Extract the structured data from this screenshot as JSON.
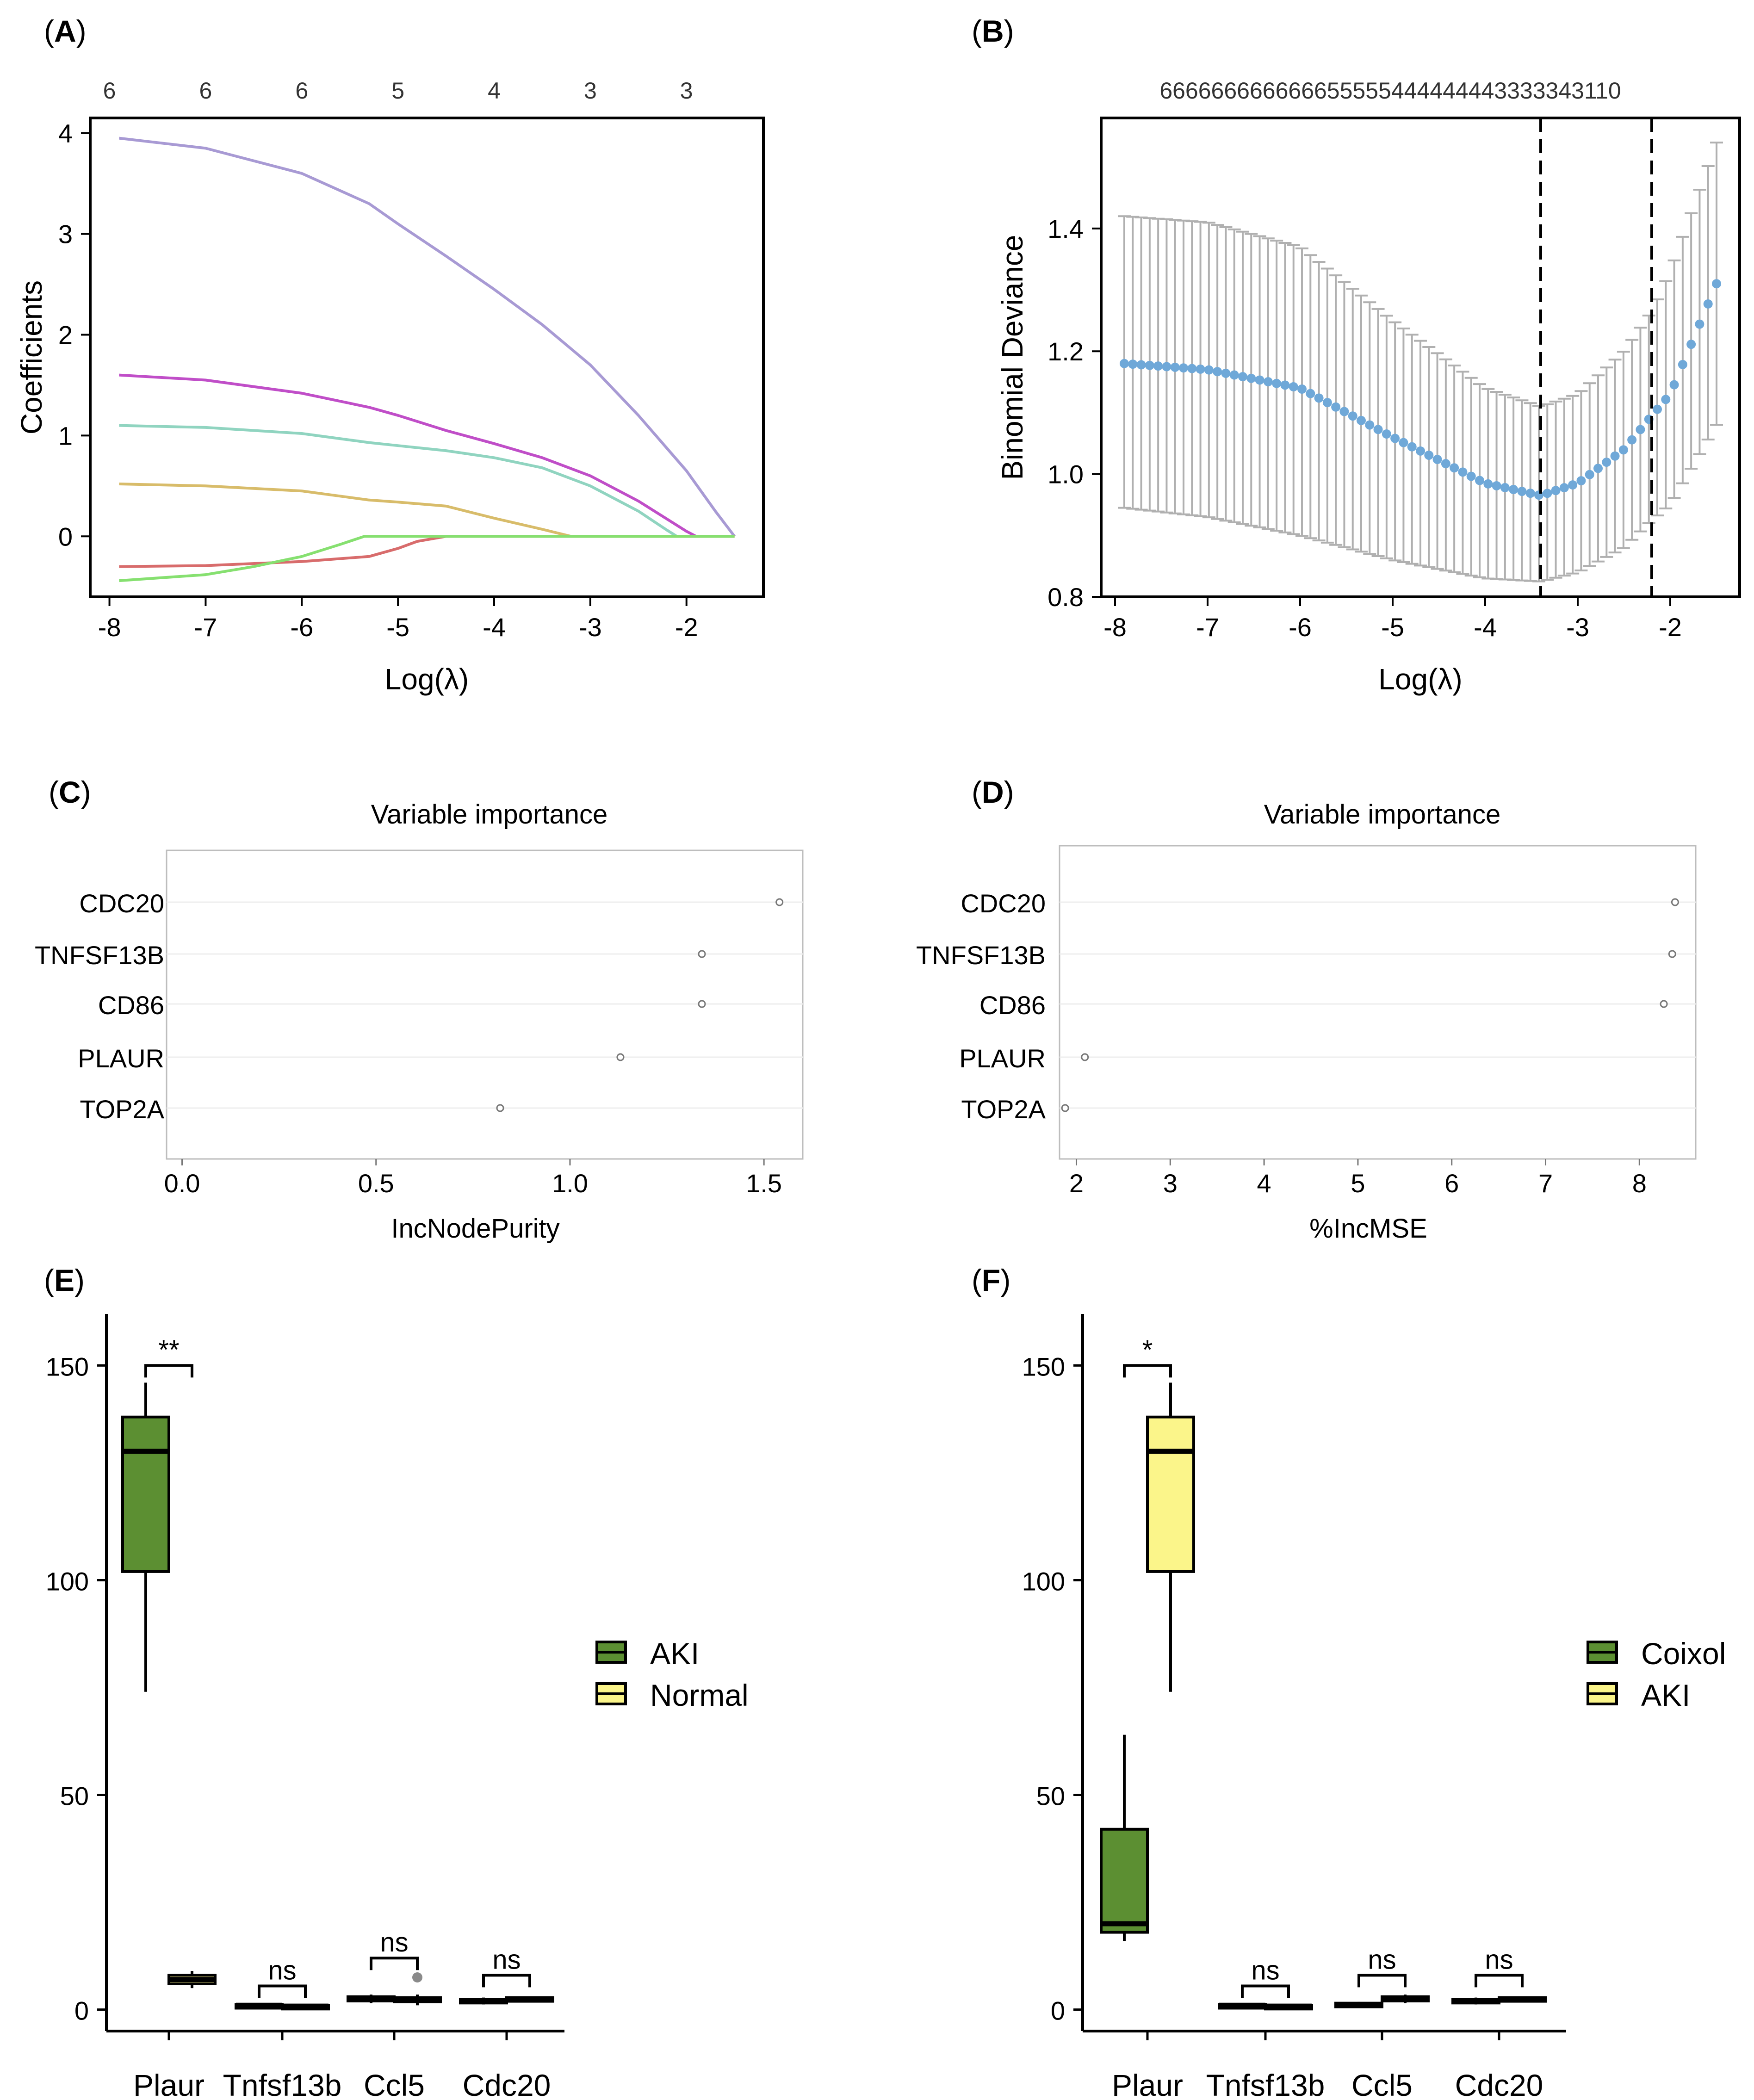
{
  "panels": [
    {
      "id": "A",
      "label": "A",
      "chart_data": {
        "type": "line",
        "title": "",
        "xlabel": "Log(λ)",
        "ylabel": "Coefficients",
        "xlim": [
          -8.2,
          -1.2
        ],
        "ylim": [
          -0.6,
          4.15
        ],
        "xticks": [
          -8,
          -7,
          -6,
          -5,
          -4,
          -3,
          -2
        ],
        "yticks": [
          0,
          1,
          2,
          3,
          4
        ],
        "top_axis": {
          "positions": [
            -8,
            -7,
            -6,
            -5,
            -4,
            -3,
            -2
          ],
          "labels": [
            "6",
            "6",
            "6",
            "5",
            "4",
            "3",
            "3"
          ]
        },
        "series": [
          {
            "name": "purple",
            "color": "#a89ad4",
            "x": [
              -7.9,
              -7.0,
              -6.0,
              -5.3,
              -5.0,
              -4.5,
              -4.0,
              -3.5,
              -3.0,
              -2.5,
              -2.0,
              -1.7,
              -1.5
            ],
            "y": [
              3.95,
              3.85,
              3.6,
              3.3,
              3.1,
              2.78,
              2.45,
              2.1,
              1.7,
              1.2,
              0.65,
              0.25,
              0.0
            ]
          },
          {
            "name": "magenta",
            "color": "#c04ec8",
            "x": [
              -7.9,
              -7.0,
              -6.0,
              -5.3,
              -5.0,
              -4.5,
              -4.0,
              -3.5,
              -3.0,
              -2.5,
              -2.0,
              -1.9
            ],
            "y": [
              1.6,
              1.55,
              1.42,
              1.28,
              1.2,
              1.05,
              0.92,
              0.78,
              0.6,
              0.35,
              0.05,
              0.0
            ]
          },
          {
            "name": "teal",
            "color": "#90d4c0",
            "x": [
              -7.9,
              -7.0,
              -6.0,
              -5.3,
              -5.0,
              -4.5,
              -4.0,
              -3.5,
              -3.0,
              -2.5,
              -2.2,
              -2.1
            ],
            "y": [
              1.1,
              1.08,
              1.02,
              0.93,
              0.9,
              0.85,
              0.78,
              0.68,
              0.5,
              0.25,
              0.06,
              0.0
            ]
          },
          {
            "name": "gold",
            "color": "#d8bc6a",
            "x": [
              -7.9,
              -7.0,
              -6.0,
              -5.3,
              -5.0,
              -4.5,
              -4.0,
              -3.5,
              -3.2,
              -3.0,
              -1.5
            ],
            "y": [
              0.52,
              0.5,
              0.45,
              0.36,
              0.34,
              0.3,
              0.18,
              0.07,
              0.0,
              0.0,
              0.0
            ]
          },
          {
            "name": "red",
            "color": "#d86c6c",
            "x": [
              -7.9,
              -7.0,
              -6.0,
              -5.3,
              -5.0,
              -4.8,
              -4.5,
              -4.0,
              -1.5
            ],
            "y": [
              -0.3,
              -0.29,
              -0.25,
              -0.2,
              -0.12,
              -0.05,
              0.0,
              0.0,
              0.0
            ]
          },
          {
            "name": "green",
            "color": "#86e070",
            "x": [
              -7.9,
              -7.0,
              -6.5,
              -6.0,
              -5.6,
              -5.35,
              -5.0,
              -3.0,
              -1.5
            ],
            "y": [
              -0.44,
              -0.38,
              -0.3,
              -0.2,
              -0.08,
              0.0,
              0.0,
              0.0,
              0.0
            ]
          }
        ]
      }
    },
    {
      "id": "B",
      "label": "B",
      "chart_data": {
        "type": "scatter",
        "title": "",
        "xlabel": "Log(λ)",
        "ylabel": "Binomial Deviance",
        "xlim": [
          -8.15,
          -1.25
        ],
        "ylim": [
          0.8,
          1.58
        ],
        "xticks": [
          -8,
          -7,
          -6,
          -5,
          -4,
          -3,
          -2
        ],
        "yticks": [
          0.8,
          1.0,
          1.2,
          1.4
        ],
        "ytick_labels": [
          "0.8",
          "1.0",
          "1.2",
          "1.4"
        ],
        "top_labels": "666666666666655555444444443333343110",
        "vlines": [
          -3.4,
          -2.2
        ],
        "curve": {
          "x_from": -7.9,
          "x_to": -1.5,
          "n": 71,
          "knots_x": [
            -7.9,
            -7.0,
            -6.0,
            -5.0,
            -4.0,
            -3.4,
            -3.0,
            -2.5,
            -2.2,
            -2.0,
            -1.5
          ],
          "mean": [
            1.18,
            1.17,
            1.14,
            1.06,
            0.985,
            0.965,
            0.985,
            1.04,
            1.095,
            1.13,
            1.31
          ],
          "upper": [
            1.42,
            1.41,
            1.37,
            1.25,
            1.14,
            1.11,
            1.13,
            1.2,
            1.265,
            1.33,
            1.54
          ],
          "lower": [
            0.945,
            0.93,
            0.9,
            0.86,
            0.83,
            0.825,
            0.84,
            0.88,
            0.925,
            0.95,
            1.08
          ]
        }
      }
    },
    {
      "id": "C",
      "label": "C",
      "chart_data": {
        "type": "scatter",
        "title": "Variable importance",
        "xlabel": "IncNodePurity",
        "ylabel": "",
        "xlim": [
          -0.04,
          1.6
        ],
        "xticks": [
          0.0,
          0.5,
          1.0,
          1.5
        ],
        "xtick_labels": [
          "0.0",
          "0.5",
          "1.0",
          "1.5"
        ],
        "categories": [
          "CDC20",
          "TNFSF13B",
          "CD86",
          "PLAUR",
          "TOP2A"
        ],
        "values": [
          1.54,
          1.34,
          1.34,
          1.13,
          0.82
        ]
      }
    },
    {
      "id": "D",
      "label": "D",
      "chart_data": {
        "type": "scatter",
        "title": "Variable importance",
        "xlabel": "%IncMSE",
        "ylabel": "",
        "xlim": [
          1.82,
          8.6
        ],
        "xticks": [
          2,
          3,
          4,
          5,
          6,
          7,
          8
        ],
        "xtick_labels": [
          "2",
          "3",
          "4",
          "5",
          "6",
          "7",
          "8"
        ],
        "categories": [
          "CDC20",
          "TNFSF13B",
          "CD86",
          "PLAUR",
          "TOP2A"
        ],
        "values": [
          8.38,
          8.35,
          8.26,
          2.09,
          1.88
        ]
      }
    },
    {
      "id": "E",
      "label": "E",
      "chart_data": {
        "type": "bar",
        "subtype": "boxplot",
        "title": "",
        "xlabel": "",
        "ylabel": "",
        "ylim": [
          -5,
          162
        ],
        "yticks": [
          0,
          50,
          100,
          150
        ],
        "categories": [
          "Plaur",
          "Tnfsf13b",
          "Ccl5",
          "Cdc20"
        ],
        "legend": [
          {
            "name": "AKI",
            "color": "#5c8f32"
          },
          {
            "name": "Normal",
            "color": "#fbf58a"
          }
        ],
        "significance": [
          "**",
          "ns",
          "ns",
          "ns"
        ],
        "bracket_y": [
          150,
          5.5,
          12,
          8
        ],
        "series": [
          {
            "name": "AKI",
            "color": "#5c8f32",
            "boxes": [
              {
                "min": 74,
                "q1": 102,
                "median": 130,
                "q3": 138,
                "max": 146
              },
              {
                "min": 0.5,
                "q1": 0.8,
                "median": 1.0,
                "q3": 1.2,
                "max": 1.5
              },
              {
                "min": 1.5,
                "q1": 2.0,
                "median": 2.5,
                "q3": 3.0,
                "max": 3.5
              },
              {
                "min": 1.2,
                "q1": 1.6,
                "median": 2.0,
                "q3": 2.4,
                "max": 2.8
              }
            ]
          },
          {
            "name": "Normal",
            "color": "#fbf58a",
            "boxes": [
              {
                "min": 5,
                "q1": 6,
                "median": 7,
                "q3": 8,
                "max": 9
              },
              {
                "min": 0.4,
                "q1": 0.6,
                "median": 0.8,
                "q3": 1.0,
                "max": 1.2
              },
              {
                "min": 1.0,
                "q1": 1.8,
                "median": 2.3,
                "q3": 2.8,
                "max": 3.5,
                "outliers": [
                  7.5
                ]
              },
              {
                "min": 1.8,
                "q1": 2.2,
                "median": 2.5,
                "q3": 2.8,
                "max": 3.0
              }
            ]
          }
        ]
      }
    },
    {
      "id": "F",
      "label": "F",
      "chart_data": {
        "type": "bar",
        "subtype": "boxplot",
        "title": "",
        "xlabel": "",
        "ylabel": "",
        "ylim": [
          -5,
          162
        ],
        "yticks": [
          0,
          50,
          100,
          150
        ],
        "categories": [
          "Plaur",
          "Tnfsf13b",
          "Ccl5",
          "Cdc20"
        ],
        "legend": [
          {
            "name": "Coixol",
            "color": "#5c8f32"
          },
          {
            "name": "AKI",
            "color": "#fbf58a"
          }
        ],
        "significance": [
          "*",
          "ns",
          "ns",
          "ns"
        ],
        "bracket_y": [
          150,
          5.5,
          8,
          8
        ],
        "series": [
          {
            "name": "Coixol",
            "color": "#5c8f32",
            "boxes": [
              {
                "min": 16,
                "q1": 18,
                "median": 20,
                "q3": 42,
                "max": 64
              },
              {
                "min": 0.5,
                "q1": 0.8,
                "median": 1.0,
                "q3": 1.2,
                "max": 1.5
              },
              {
                "min": 0.8,
                "q1": 1.0,
                "median": 1.2,
                "q3": 1.5,
                "max": 1.8
              },
              {
                "min": 1.2,
                "q1": 1.6,
                "median": 2.0,
                "q3": 2.4,
                "max": 2.8
              }
            ]
          },
          {
            "name": "AKI",
            "color": "#fbf58a",
            "boxes": [
              {
                "min": 74,
                "q1": 102,
                "median": 130,
                "q3": 138,
                "max": 146
              },
              {
                "min": 0.4,
                "q1": 0.6,
                "median": 0.8,
                "q3": 1.0,
                "max": 1.2
              },
              {
                "min": 1.5,
                "q1": 2.0,
                "median": 2.5,
                "q3": 3.0,
                "max": 3.5
              },
              {
                "min": 1.8,
                "q1": 2.2,
                "median": 2.5,
                "q3": 2.8,
                "max": 3.0
              }
            ]
          }
        ]
      }
    }
  ]
}
